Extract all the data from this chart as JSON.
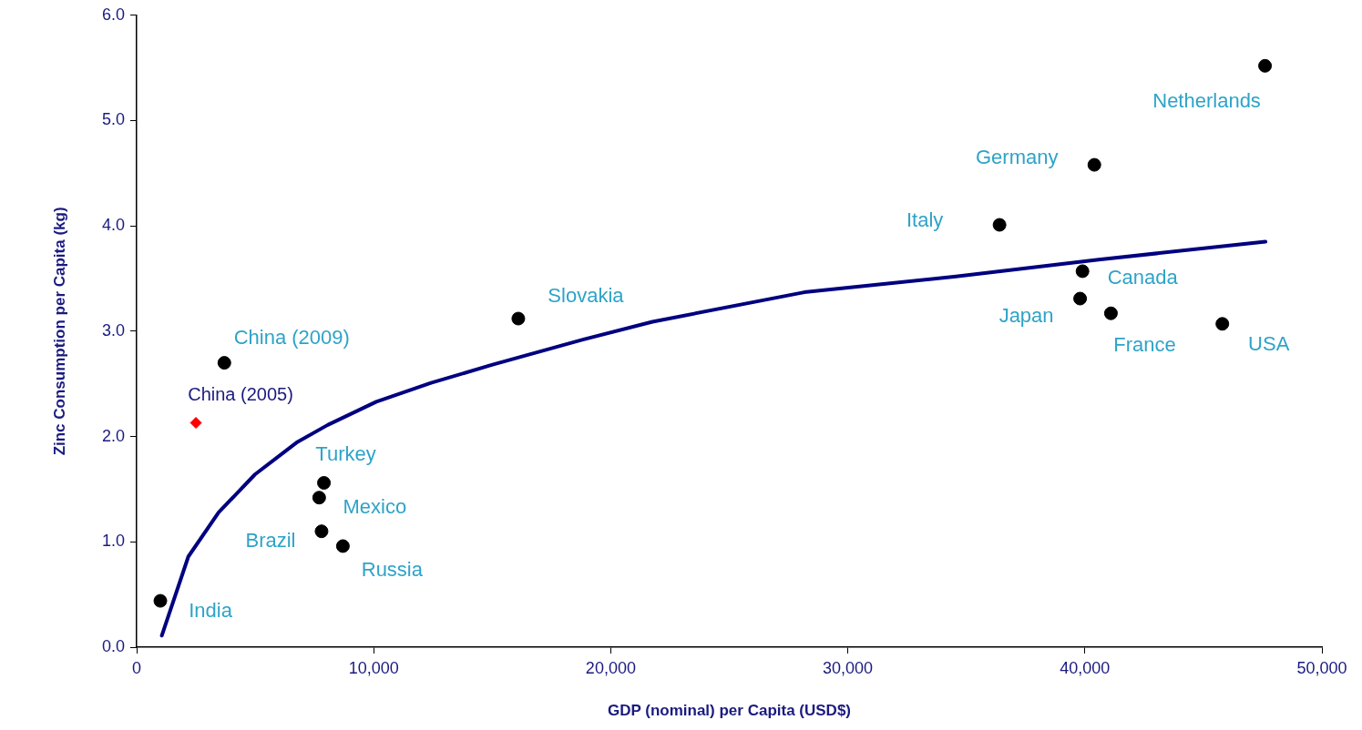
{
  "chart_data": {
    "type": "scatter",
    "xlabel": "GDP (nominal) per Capita (USD$)",
    "ylabel": "Zinc Consumption per Capita (kg)",
    "xlim": [
      0,
      50000
    ],
    "xticks": [
      0,
      {
        "value": 10000,
        "label": "10,000"
      },
      {
        "value": 20000,
        "label": "20,000"
      },
      {
        "value": 30000,
        "label": "30,000"
      },
      {
        "value": 40000,
        "label": "40,000"
      },
      {
        "value": 50000,
        "label": "50,000"
      }
    ],
    "ylim": [
      0,
      6
    ],
    "yticks": [
      {
        "value": 0,
        "label": "0.0"
      },
      {
        "value": 1,
        "label": "1.0"
      },
      {
        "value": 2,
        "label": "2.0"
      },
      {
        "value": 3,
        "label": "3.0"
      },
      {
        "value": 4,
        "label": "4.0"
      },
      {
        "value": 5,
        "label": "5.0"
      },
      {
        "value": 6,
        "label": "6.0"
      }
    ],
    "grid": false,
    "legend": false,
    "series": [
      {
        "type": "scatter",
        "color": "#000000",
        "marker": "circle",
        "x": [
          1000,
          3700,
          7900,
          7700,
          7800,
          8700,
          16100,
          36400,
          40400,
          39900,
          39800,
          41100,
          45800,
          47600
        ],
        "values": [
          0.44,
          2.7,
          1.56,
          1.42,
          1.1,
          0.96,
          3.12,
          4.01,
          4.58,
          3.57,
          3.31,
          3.17,
          3.07,
          5.52
        ]
      },
      {
        "type": "scatter",
        "name": "China (2005)",
        "color": "#ff0000",
        "marker": "diamond",
        "x": [
          2500
        ],
        "values": [
          2.13
        ]
      },
      {
        "type": "line",
        "color": "#000080",
        "marker": "none",
        "x": [
          1060,
          2180,
          3460,
          4990,
          6790,
          8060,
          10110,
          12420,
          14980,
          18820,
          21760,
          28160,
          34560,
          40580,
          47620
        ],
        "values": [
          0.11,
          0.86,
          1.28,
          1.64,
          1.95,
          2.11,
          2.33,
          2.51,
          2.68,
          2.92,
          3.09,
          3.37,
          3.52,
          3.68,
          3.85
        ]
      }
    ],
    "annotations": [
      {
        "text": "India",
        "x": 1000,
        "y": 0.44
      },
      {
        "text": "China (2009)",
        "x": 3700,
        "y": 2.7
      },
      {
        "text": "Turkey",
        "x": 7900,
        "y": 1.56
      },
      {
        "text": "Mexico",
        "x": 7700,
        "y": 1.42
      },
      {
        "text": "Brazil",
        "x": 7800,
        "y": 1.1
      },
      {
        "text": "Russia",
        "x": 8700,
        "y": 0.96
      },
      {
        "text": "Slovakia",
        "x": 16100,
        "y": 3.12
      },
      {
        "text": "Italy",
        "x": 36400,
        "y": 4.01
      },
      {
        "text": "Germany",
        "x": 40400,
        "y": 4.58
      },
      {
        "text": "Canada",
        "x": 39900,
        "y": 3.57
      },
      {
        "text": "Japan",
        "x": 39800,
        "y": 3.31
      },
      {
        "text": "France",
        "x": 41100,
        "y": 3.17
      },
      {
        "text": "USA",
        "x": 45800,
        "y": 3.07
      },
      {
        "text": "Netherlands",
        "x": 47600,
        "y": 5.52
      }
    ]
  }
}
